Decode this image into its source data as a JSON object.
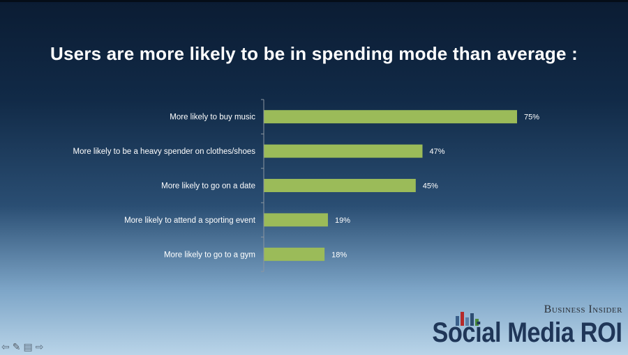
{
  "slide": {
    "title": "Users are more likely to be in spending mode than average :"
  },
  "chart_data": {
    "type": "bar",
    "orientation": "horizontal",
    "categories": [
      "More likely to buy music",
      "More likely to be a heavy spender on clothes/shoes",
      "More likely to go on a date",
      "More likely to attend a sporting event",
      "More likely to go to a gym"
    ],
    "values": [
      75,
      47,
      45,
      19,
      18
    ],
    "value_labels": [
      "75%",
      "47%",
      "45%",
      "19%",
      "18%"
    ],
    "xlim": [
      0,
      100
    ],
    "bar_color": "#9bbb59",
    "grid": false,
    "legend": "none"
  },
  "branding": {
    "publisher": "Business Insider",
    "product": "Social Media ROI"
  },
  "navigation": {
    "icons": [
      "arrow-left-icon",
      "pen-icon",
      "menu-icon",
      "arrow-right-icon"
    ]
  }
}
